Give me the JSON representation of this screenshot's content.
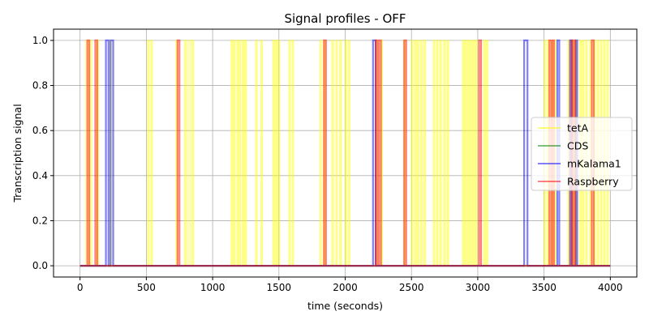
{
  "chart_data": {
    "type": "line",
    "title": "Signal profiles - OFF",
    "xlabel": "time (seconds)",
    "ylabel": "Transcription signal",
    "xlim": [
      -200,
      4200
    ],
    "ylim": [
      -0.05,
      1.05
    ],
    "xticks": [
      0,
      500,
      1000,
      1500,
      2000,
      2500,
      3000,
      3500,
      4000
    ],
    "xtick_labels": [
      "0",
      "500",
      "1000",
      "1500",
      "2000",
      "2500",
      "3000",
      "3500",
      "4000"
    ],
    "yticks": [
      0.0,
      0.2,
      0.4,
      0.6,
      0.8,
      1.0
    ],
    "ytick_labels": [
      "0.0",
      "0.2",
      "0.4",
      "0.6",
      "0.8",
      "1.0"
    ],
    "grid": true,
    "legend_position": "right",
    "time_end": 4000,
    "series": [
      {
        "name": "tetA",
        "color": "#ffff00",
        "opacity": 0.5,
        "pulses": [
          [
            45,
            60
          ],
          [
            75,
            90
          ],
          [
            125,
            140
          ],
          [
            225,
            240
          ],
          [
            510,
            520
          ],
          [
            535,
            545
          ],
          [
            725,
            735
          ],
          [
            790,
            800
          ],
          [
            815,
            830
          ],
          [
            845,
            855
          ],
          [
            1140,
            1150
          ],
          [
            1160,
            1170
          ],
          [
            1185,
            1195
          ],
          [
            1200,
            1210
          ],
          [
            1225,
            1235
          ],
          [
            1245,
            1255
          ],
          [
            1325,
            1335
          ],
          [
            1365,
            1375
          ],
          [
            1455,
            1465
          ],
          [
            1475,
            1485
          ],
          [
            1495,
            1505
          ],
          [
            1575,
            1585
          ],
          [
            1600,
            1610
          ],
          [
            1810,
            1820
          ],
          [
            1840,
            1850
          ],
          [
            1900,
            1910
          ],
          [
            1930,
            1940
          ],
          [
            1960,
            1970
          ],
          [
            2000,
            2010
          ],
          [
            2025,
            2035
          ],
          [
            2235,
            2245
          ],
          [
            2270,
            2280
          ],
          [
            2445,
            2455
          ],
          [
            2500,
            2510
          ],
          [
            2525,
            2535
          ],
          [
            2545,
            2555
          ],
          [
            2570,
            2580
          ],
          [
            2595,
            2605
          ],
          [
            2665,
            2675
          ],
          [
            2690,
            2700
          ],
          [
            2715,
            2725
          ],
          [
            2745,
            2755
          ],
          [
            2770,
            2780
          ],
          [
            2885,
            2895
          ],
          [
            2905,
            2915
          ],
          [
            2925,
            2935
          ],
          [
            2945,
            2955
          ],
          [
            2965,
            2975
          ],
          [
            2985,
            2995
          ],
          [
            3045,
            3055
          ],
          [
            3065,
            3075
          ],
          [
            3500,
            3510
          ],
          [
            3525,
            3535
          ],
          [
            3555,
            3565
          ],
          [
            3580,
            3590
          ],
          [
            3680,
            3690
          ],
          [
            3705,
            3715
          ],
          [
            3725,
            3735
          ],
          [
            3740,
            3750
          ],
          [
            3770,
            3780
          ],
          [
            3790,
            3800
          ],
          [
            3815,
            3825
          ],
          [
            3845,
            3855
          ],
          [
            3875,
            3885
          ],
          [
            3900,
            3910
          ],
          [
            3925,
            3935
          ],
          [
            3950,
            3960
          ],
          [
            3975,
            3985
          ]
        ]
      },
      {
        "name": "CDS",
        "color": "#008000",
        "opacity": 0.5,
        "pulses": []
      },
      {
        "name": "mKalama1",
        "color": "#0000ff",
        "opacity": 0.5,
        "pulses": [
          [
            195,
            215
          ],
          [
            230,
            250
          ],
          [
            2210,
            2230
          ],
          [
            3350,
            3375
          ],
          [
            3600,
            3615
          ],
          [
            3695,
            3710
          ],
          [
            3740,
            3750
          ]
        ]
      },
      {
        "name": "Raspberry",
        "color": "#ff0000",
        "opacity": 0.5,
        "pulses": [
          [
            55,
            70
          ],
          [
            115,
            130
          ],
          [
            735,
            750
          ],
          [
            1840,
            1855
          ],
          [
            2230,
            2245
          ],
          [
            2255,
            2270
          ],
          [
            2445,
            2460
          ],
          [
            3010,
            3025
          ],
          [
            3540,
            3555
          ],
          [
            3565,
            3575
          ],
          [
            3705,
            3720
          ],
          [
            3725,
            3735
          ],
          [
            3860,
            3875
          ]
        ]
      }
    ]
  }
}
